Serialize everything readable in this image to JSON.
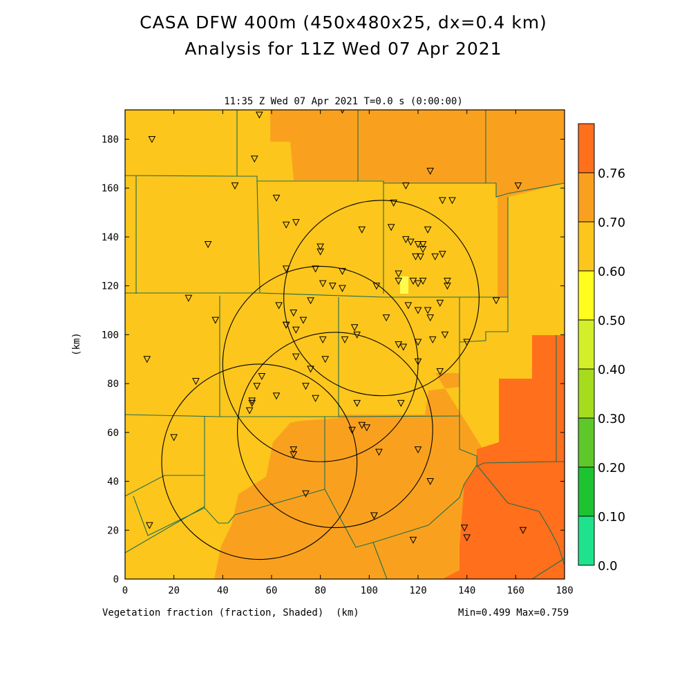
{
  "title_line1": "CASA DFW 400m (450x480x25, dx=0.4 km)",
  "title_line2": "Analysis for 11Z Wed 07 Apr 2021",
  "plot_header": "11:35 Z Wed 07 Apr 2021    T=0.0 s (0:00:00)",
  "ylabel": "(km)",
  "xlabel_field": "Vegetation fraction (fraction, Shaded)",
  "xlabel_units": "(km)",
  "minmax": "Min=0.499 Max=0.759",
  "colors": {
    "c050": "#fcc61c",
    "c060": "#f9a11e",
    "c070": "#ff6f1c",
    "light": "#fffb4c",
    "border": "#1e6e52"
  },
  "colorbar": {
    "labels": [
      "0.0",
      "0.10",
      "0.20",
      "0.30",
      "0.40",
      "0.50",
      "0.60",
      "0.70",
      "0.76"
    ],
    "colors": [
      "#1ee38c",
      "#1ec332",
      "#5ec82a",
      "#a5dc1e",
      "#d2ef2a",
      "#fffc1e",
      "#fcc61c",
      "#f9a11e",
      "#ff6f1c"
    ]
  },
  "chart_data": {
    "type": "map",
    "field": "Vegetation fraction",
    "units": "fraction",
    "xlim": [
      0,
      180
    ],
    "ylim": [
      0,
      192
    ],
    "xticks": [
      0,
      20,
      40,
      60,
      80,
      100,
      120,
      140,
      160,
      180
    ],
    "yticks": [
      0,
      20,
      40,
      60,
      80,
      100,
      120,
      140,
      160,
      180
    ],
    "min": 0.499,
    "max": 0.759,
    "radars": [
      {
        "x": 55,
        "y": 48,
        "r": 40
      },
      {
        "x": 80,
        "y": 88,
        "r": 40
      },
      {
        "x": 86,
        "y": 61,
        "r": 40
      },
      {
        "x": 105,
        "y": 115,
        "r": 40
      }
    ],
    "stations": [
      [
        55,
        190
      ],
      [
        89,
        192
      ],
      [
        11,
        180
      ],
      [
        53,
        172
      ],
      [
        125,
        167
      ],
      [
        45,
        161
      ],
      [
        115,
        161
      ],
      [
        161,
        161
      ],
      [
        62,
        156
      ],
      [
        130,
        155
      ],
      [
        134,
        155
      ],
      [
        110,
        154
      ],
      [
        66,
        145
      ],
      [
        70,
        146
      ],
      [
        109,
        144
      ],
      [
        97,
        143
      ],
      [
        124,
        143
      ],
      [
        115,
        139
      ],
      [
        117,
        138
      ],
      [
        120,
        137
      ],
      [
        122,
        137
      ],
      [
        34,
        137
      ],
      [
        122,
        135
      ],
      [
        80,
        136
      ],
      [
        80,
        134
      ],
      [
        130,
        133
      ],
      [
        127,
        132
      ],
      [
        121,
        132
      ],
      [
        119,
        132
      ],
      [
        66,
        127
      ],
      [
        78,
        127
      ],
      [
        89,
        126
      ],
      [
        112,
        125
      ],
      [
        112,
        122
      ],
      [
        118,
        122
      ],
      [
        120,
        121
      ],
      [
        122,
        122
      ],
      [
        132,
        122
      ],
      [
        132,
        120
      ],
      [
        81,
        121
      ],
      [
        85,
        120
      ],
      [
        89,
        119
      ],
      [
        103,
        120
      ],
      [
        26,
        115
      ],
      [
        63,
        112
      ],
      [
        76,
        114
      ],
      [
        129,
        113
      ],
      [
        116,
        112
      ],
      [
        152,
        114
      ],
      [
        120,
        110
      ],
      [
        124,
        110
      ],
      [
        125,
        107
      ],
      [
        107,
        107
      ],
      [
        37,
        106
      ],
      [
        69,
        109
      ],
      [
        73,
        106
      ],
      [
        66,
        104
      ],
      [
        66,
        104
      ],
      [
        70,
        102
      ],
      [
        94,
        103
      ],
      [
        131,
        100
      ],
      [
        95,
        100
      ],
      [
        140,
        97
      ],
      [
        81,
        98
      ],
      [
        90,
        98
      ],
      [
        126,
        98
      ],
      [
        112,
        96
      ],
      [
        114,
        95
      ],
      [
        120,
        97
      ],
      [
        9,
        90
      ],
      [
        70,
        91
      ],
      [
        82,
        90
      ],
      [
        120,
        89
      ],
      [
        129,
        85
      ],
      [
        76,
        86
      ],
      [
        29,
        81
      ],
      [
        56,
        83
      ],
      [
        54,
        79
      ],
      [
        74,
        79
      ],
      [
        78,
        74
      ],
      [
        62,
        75
      ],
      [
        52,
        73
      ],
      [
        52,
        72
      ],
      [
        51,
        69
      ],
      [
        95,
        72
      ],
      [
        113,
        72
      ],
      [
        97,
        63
      ],
      [
        99,
        62
      ],
      [
        93,
        61
      ],
      [
        20,
        58
      ],
      [
        69,
        53
      ],
      [
        69,
        51
      ],
      [
        104,
        52
      ],
      [
        120,
        53
      ],
      [
        125,
        40
      ],
      [
        74,
        35
      ],
      [
        102,
        26
      ],
      [
        102,
        26
      ],
      [
        139,
        21
      ],
      [
        140,
        17
      ],
      [
        118,
        16
      ],
      [
        163,
        20
      ],
      [
        10,
        22
      ]
    ]
  }
}
